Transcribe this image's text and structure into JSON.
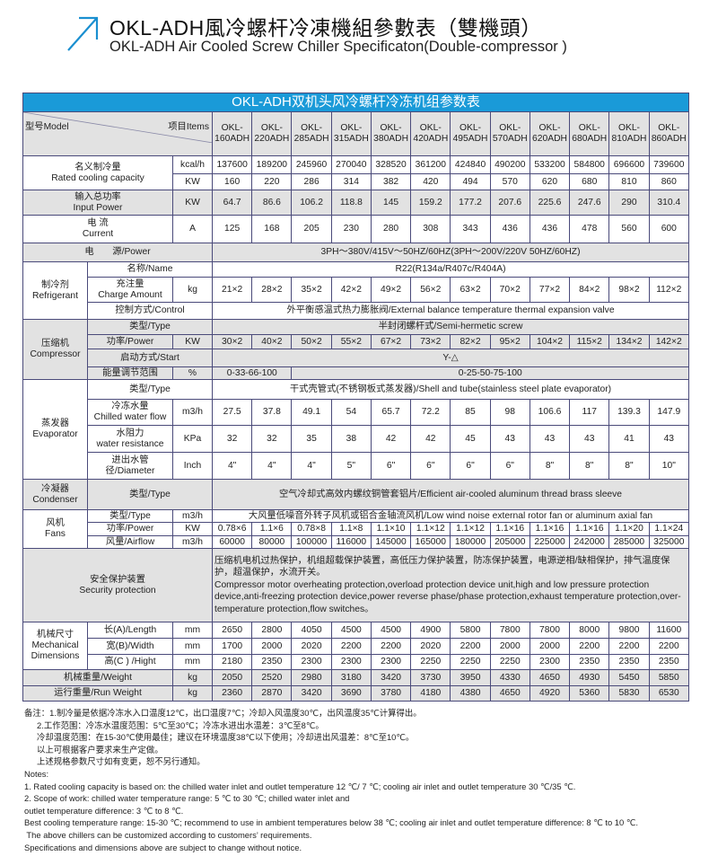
{
  "header": {
    "title_cn": "OKL-ADH風冷螺杆冷凍機組參數表（雙機頭）",
    "title_en": "OKL-ADH Air Cooled Screw Chiller Specificaton(Double-compressor )",
    "icon": "arrow-up-right-icon",
    "accent_color": "#1a9ad8"
  },
  "table": {
    "title": "OKL-ADH双机头风冷螺杆冷冻机组参数表",
    "model_label": "型号Model",
    "items_label": "项目Items",
    "models": [
      "OKL-\n160ADH",
      "OKL-\n220ADH",
      "OKL-\n285ADH",
      "OKL-\n315ADH",
      "OKL-\n380ADH",
      "OKL-\n420ADH",
      "OKL-\n495ADH",
      "OKL-\n570ADH",
      "OKL-\n620ADH",
      "OKL-\n680ADH",
      "OKL-\n810ADH",
      "OKL-\n860ADH"
    ],
    "rows": [
      {
        "cells": [
          "名义制冷量\nRated cooling capacity",
          "kcal/h"
        ],
        "values": [
          "137600",
          "189200",
          "245960",
          "270040",
          "328520",
          "361200",
          "424840",
          "490200",
          "533200",
          "584800",
          "696600",
          "739600"
        ]
      },
      {
        "cells": [
          "KW"
        ],
        "values": [
          "160",
          "220",
          "286",
          "314",
          "382",
          "420",
          "494",
          "570",
          "620",
          "680",
          "810",
          "860"
        ]
      },
      {
        "cells": [
          "输入总功率\nInput Power",
          "KW"
        ],
        "values": [
          "64.7",
          "86.6",
          "106.2",
          "118.8",
          "145",
          "159.2",
          "177.2",
          "207.6",
          "225.6",
          "247.6",
          "290",
          "310.4"
        ]
      },
      {
        "cells": [
          "电  流\nCurrent",
          "A"
        ],
        "values": [
          "125",
          "168",
          "205",
          "230",
          "280",
          "308",
          "343",
          "436",
          "436",
          "478",
          "560",
          "600"
        ]
      },
      {
        "cells": [
          "电　　源/Power",
          "3PH～380V/415V～50HZ/60HZ(3PH～200V/220V   50HZ/60HZ)"
        ],
        "values": []
      },
      {
        "cells": [
          "制冷剂\nRefrigerant",
          "名称/Name",
          "R22(R134a/R407c/R404A)"
        ],
        "values": []
      },
      {
        "cells": [
          "充注量\nCharge Amount",
          "kg"
        ],
        "values": [
          "21×2",
          "28×2",
          "35×2",
          "42×2",
          "49×2",
          "56×2",
          "63×2",
          "70×2",
          "77×2",
          "84×2",
          "98×2",
          "112×2"
        ]
      },
      {
        "cells": [
          "控制方式/Control",
          "外平衡感温式热力膨胀阀/External balance temperature thermal expansion valve"
        ],
        "values": []
      },
      {
        "cells": [
          "压缩机\nCompressor",
          "类型/Type",
          "半封闭螺杆式/Semi-hermetic screw"
        ],
        "values": []
      },
      {
        "cells": [
          "功率/Power",
          "KW"
        ],
        "values": [
          "30×2",
          "40×2",
          "50×2",
          "55×2",
          "67×2",
          "73×2",
          "82×2",
          "95×2",
          "104×2",
          "115×2",
          "134×2",
          "142×2"
        ]
      },
      {
        "cells": [
          "启动方式/Start",
          "Y-△"
        ],
        "values": []
      },
      {
        "cells": [
          "能量调节范围",
          "%",
          "0-33-66-100",
          "0-25-50-75-100"
        ],
        "values": []
      },
      {
        "cells": [
          "蒸发器\nEvaporator",
          "类型/Type",
          "干式壳管式(不锈钢板式蒸发器)/Shell and tube(stainless steel plate evaporator)"
        ],
        "values": []
      },
      {
        "cells": [
          "冷冻水量\nChilled water flow",
          "m3/h"
        ],
        "values": [
          "27.5",
          "37.8",
          "49.1",
          "54",
          "65.7",
          "72.2",
          "85",
          "98",
          "106.6",
          "117",
          "139.3",
          "147.9"
        ]
      },
      {
        "cells": [
          "水阻力\nwater resistance",
          "KPa"
        ],
        "values": [
          "32",
          "32",
          "35",
          "38",
          "42",
          "42",
          "45",
          "43",
          "43",
          "43",
          "41",
          "43"
        ]
      },
      {
        "cells": [
          "进出水管径/Diameter",
          "Inch"
        ],
        "values": [
          "4\"",
          "4\"",
          "4\"",
          "5\"",
          "6\"",
          "6\"",
          "6\"",
          "6\"",
          "8\"",
          "8\"",
          "8\"",
          "10\""
        ]
      },
      {
        "cells": [
          "冷凝器\nCondenser",
          "类型/Type",
          "空气冷却式高效内螺纹铜管套铝片/Efficient air-cooled aluminum thread brass sleeve"
        ],
        "values": []
      },
      {
        "cells": [
          "风机\nFans",
          "类型/Type",
          "m3/h",
          "大风量低噪音外转子风机或铝合金轴流风机/Low wind noise external rotor fan or aluminum axial fan"
        ],
        "values": []
      },
      {
        "cells": [
          "功率/Power",
          "KW"
        ],
        "values": [
          "0.78×6",
          "1.1×6",
          "0.78×8",
          "1.1×8",
          "1.1×10",
          "1.1×12",
          "1.1×12",
          "1.1×16",
          "1.1×16",
          "1.1×16",
          "1.1×20",
          "1.1×24"
        ]
      },
      {
        "cells": [
          "风量/Airflow",
          "m3/h"
        ],
        "values": [
          "60000",
          "80000",
          "100000",
          "116000",
          "145000",
          "165000",
          "180000",
          "205000",
          "225000",
          "242000",
          "285000",
          "325000"
        ]
      },
      {
        "cells": [
          "安全保护装置\nSecurity protection",
          "压缩机电机过热保护，机组超载保护装置，高低压力保护装置，防冻保护装置，电源逆相/缺相保护，排气温度保护，超温保护，水流开关。\nCompressor motor overheating protection,overload protection device unit,high and low pressure protection device,anti-freezing protection device,power reverse phase/phase protection,exhaust temperature protection,over-temperature protection,flow switches。"
        ],
        "values": []
      },
      {
        "cells": [
          "机械尺寸\nMechanical\nDimensions",
          "长(A)/Length",
          "mm"
        ],
        "values": [
          "2650",
          "2800",
          "4050",
          "4500",
          "4500",
          "4900",
          "5800",
          "7800",
          "7800",
          "8000",
          "9800",
          "11600"
        ]
      },
      {
        "cells": [
          "宽(B)/Width",
          "mm"
        ],
        "values": [
          "1700",
          "2000",
          "2020",
          "2200",
          "2200",
          "2020",
          "2200",
          "2000",
          "2000",
          "2200",
          "2200",
          "2200"
        ]
      },
      {
        "cells": [
          "高(C ) /Hight",
          "mm"
        ],
        "values": [
          "2180",
          "2350",
          "2300",
          "2300",
          "2300",
          "2250",
          "2250",
          "2250",
          "2300",
          "2350",
          "2350",
          "2350"
        ]
      },
      {
        "cells": [
          "机械重量/Weight",
          "kg"
        ],
        "values": [
          "2050",
          "2520",
          "2980",
          "3180",
          "3420",
          "3730",
          "3950",
          "4330",
          "4650",
          "4930",
          "5450",
          "5850"
        ]
      },
      {
        "cells": [
          "运行重量/Run Weight",
          "kg"
        ],
        "values": [
          "2360",
          "2870",
          "3420",
          "3690",
          "3780",
          "4180",
          "4380",
          "4650",
          "4920",
          "5360",
          "5830",
          "6530"
        ]
      }
    ]
  },
  "notes": {
    "cn": [
      "备注：1.制冷量是依据冷冻水入口温度12℃，出口温度7℃；冷却入风温度30℃，出风温度35℃计算得出。",
      "2.工作范围：冷冻水温度范围：5℃至30℃；冷冻水进出水温差：3℃至8℃。",
      "冷却温度范围：在15-30℃使用最佳；建议在环境温度38℃以下使用；冷却进出风温差：8℃至10℃。",
      "以上可根据客户要求来生产定做。",
      "上述规格参数尺寸如有变更，恕不另行通知。"
    ],
    "en_title": "Notes:",
    "en": [
      "1. Rated cooling capacity is based on: the chilled water inlet and outlet temperature 12 ℃/ 7 ℃; cooling air inlet and outlet temperature 30 ℃/35 ℃.",
      "2. Scope of work: chilled water temperature range: 5 ℃ to 30 ℃; chilled water inlet and",
      "outlet temperature difference: 3 ℃ to 8 ℃.",
      "Best cooling temperature range: 15-30 ℃; recommend to use in ambient temperatures below 38 ℃; cooling air inlet and outlet temperature difference: 8 ℃ to 10 ℃.",
      " The above chillers can be customized according to customers’ requirements.",
      "Specifications and dimensions above are subject to change without notice."
    ]
  }
}
